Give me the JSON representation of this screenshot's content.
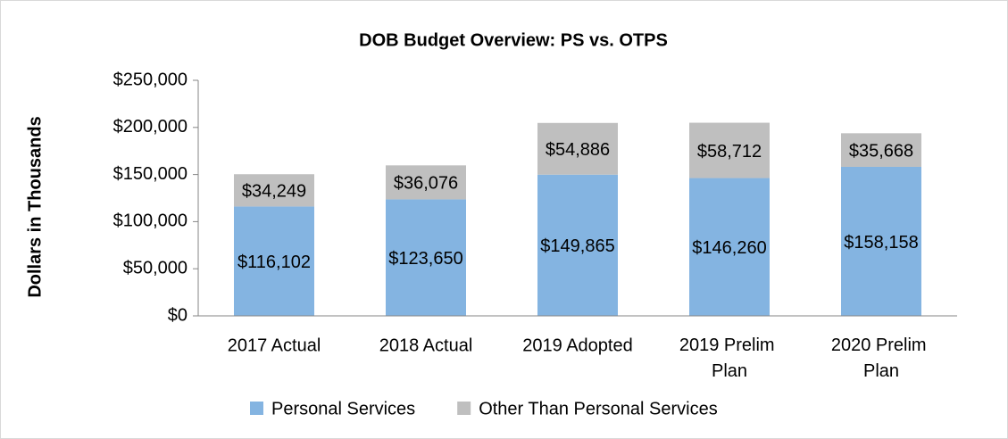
{
  "chart_data": {
    "type": "stacked_bar",
    "title": "DOB Budget Overview: PS vs. OTPS",
    "y_label": "Dollars in Thousands",
    "categories": [
      "2017 Actual",
      "2018 Actual",
      "2019 Adopted",
      "2019 Prelim Plan",
      "2020 Prelim Plan"
    ],
    "series": [
      {
        "name": "Personal Services",
        "color": "#84b4e1",
        "values": [
          116102,
          123650,
          149865,
          146260,
          158158
        ],
        "value_labels": [
          "$116,102",
          "$123,650",
          "$149,865",
          "$146,260",
          "$158,158"
        ]
      },
      {
        "name": "Other Than Personal Services",
        "color": "#bfbfbf",
        "values": [
          34249,
          36076,
          54886,
          58712,
          35668
        ],
        "value_labels": [
          "$34,249",
          "$36,076",
          "$54,886",
          "$58,712",
          "$35,668"
        ]
      }
    ],
    "ylim": [
      0,
      250000
    ],
    "yticks": [
      {
        "value": 0,
        "label": "$0"
      },
      {
        "value": 50000,
        "label": "$50,000"
      },
      {
        "value": 100000,
        "label": "$100,000"
      },
      {
        "value": 150000,
        "label": "$150,000"
      },
      {
        "value": 200000,
        "label": "$200,000"
      },
      {
        "value": 250000,
        "label": "$250,000"
      }
    ],
    "grid": false,
    "legend": "bottom"
  }
}
